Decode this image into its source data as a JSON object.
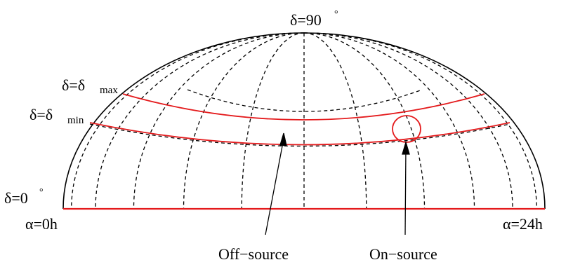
{
  "labels": {
    "pole": "δ=90",
    "delta_max_main": "δ=δ",
    "delta_max_sub": "max",
    "delta_min_main": "δ=δ",
    "delta_min_sub": "min",
    "equator": "δ=0",
    "alpha_start": "α=0h",
    "alpha_end": "α=24h",
    "off_source": "Off−source",
    "on_source": "On−source",
    "degree": "°"
  },
  "colors": {
    "outline": "#000000",
    "band": "#e41a1c",
    "background": "#ffffff"
  },
  "grid": {
    "meridian_count": 24,
    "parallel_count": 2
  }
}
